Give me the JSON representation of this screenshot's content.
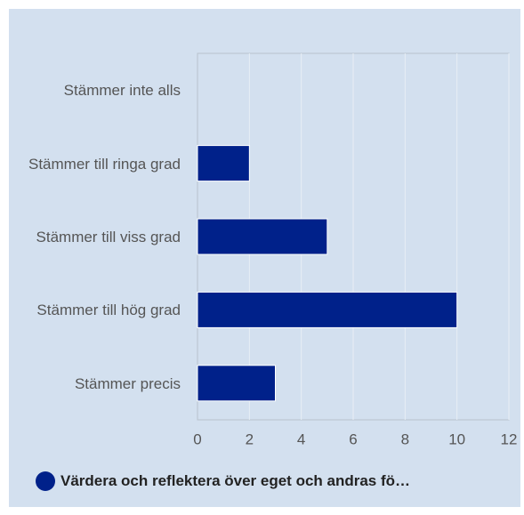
{
  "chart_data": {
    "type": "barh",
    "categories": [
      "Stämmer inte alls",
      "Stämmer till ringa grad",
      "Stämmer till viss grad",
      "Stämmer till hög grad",
      "Stämmer precis"
    ],
    "series": [
      {
        "name": "Värdera och reflektera över eget och andras fö…",
        "color": "#00218a",
        "values": [
          0,
          2,
          5,
          10,
          3
        ]
      }
    ],
    "xlim": [
      0,
      12
    ],
    "xticks": [
      0,
      2,
      4,
      6,
      8,
      10,
      12
    ],
    "grid": true,
    "legend": "bottom"
  }
}
